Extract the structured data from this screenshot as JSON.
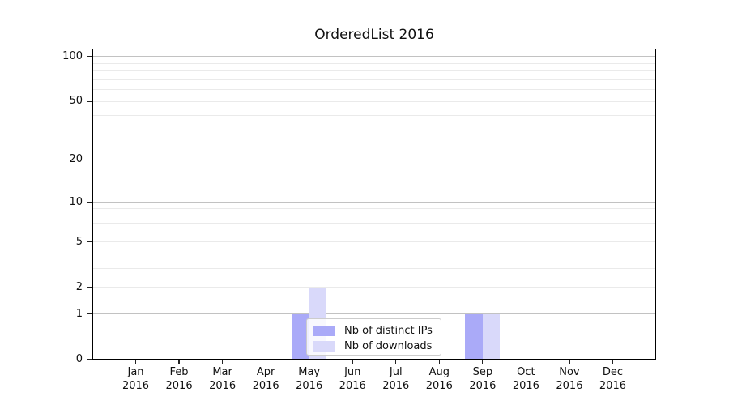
{
  "figure": {
    "background": "#ffffff"
  },
  "chart_data": {
    "type": "bar",
    "title": "OrderedList 2016",
    "xlabel": "",
    "ylabel": "",
    "categories": [
      "Jan 2016",
      "Feb 2016",
      "Mar 2016",
      "Apr 2016",
      "May 2016",
      "Jun 2016",
      "Jul 2016",
      "Aug 2016",
      "Sep 2016",
      "Oct 2016",
      "Nov 2016",
      "Dec 2016"
    ],
    "series": [
      {
        "name": "Nb of distinct IPs",
        "color": "#aaaaf8",
        "values": [
          0,
          0,
          0,
          0,
          1,
          0,
          0,
          0,
          1,
          0,
          0,
          0
        ]
      },
      {
        "name": "Nb of downloads",
        "color": "#d9d9fa",
        "values": [
          0,
          0,
          0,
          0,
          2,
          0,
          0,
          0,
          1,
          0,
          0,
          0
        ]
      }
    ],
    "yticks": [
      0,
      1,
      2,
      5,
      10,
      20,
      50,
      100
    ],
    "ylim": [
      0,
      113
    ],
    "yscale": "log10(value+1)",
    "grid": {
      "on": true,
      "major_values": [
        1,
        10,
        100
      ],
      "minor_values": [
        2,
        3,
        4,
        5,
        6,
        7,
        8,
        9,
        20,
        30,
        40,
        50,
        60,
        70,
        80,
        90
      ],
      "major_color": "#c2c2c2",
      "minor_color": "#eaeaea"
    },
    "legend": {
      "position": "lower center-left inside plot",
      "border_color": "#cccccc",
      "background": "rgba(255,255,255,0.8)"
    }
  }
}
